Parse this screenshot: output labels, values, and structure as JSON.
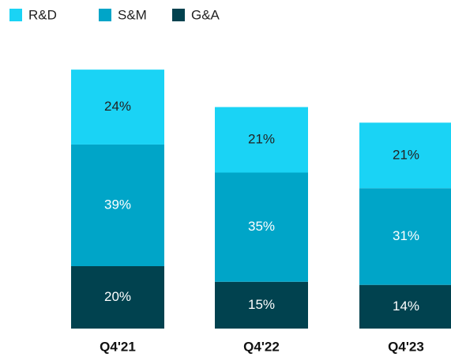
{
  "chart_data": {
    "type": "stacked-bar",
    "categories": [
      "Q4'21",
      "Q4'22",
      "Q4'23"
    ],
    "series": [
      {
        "name": "G&A",
        "color": "#01424f",
        "values": [
          20,
          15,
          14
        ],
        "value_labels": [
          "20%",
          "15%",
          "14%"
        ]
      },
      {
        "name": "S&M",
        "color": "#00a5c8",
        "values": [
          39,
          35,
          31
        ],
        "value_labels": [
          "39%",
          "35%",
          "31%"
        ]
      },
      {
        "name": "R&D",
        "color": "#1ad3f5",
        "values": [
          24,
          21,
          21
        ],
        "value_labels": [
          "24%",
          "21%",
          "21%"
        ]
      }
    ]
  }
}
